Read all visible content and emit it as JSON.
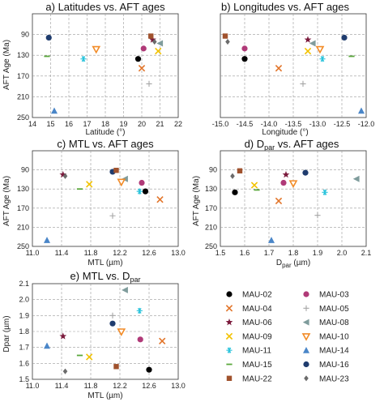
{
  "legend": {
    "entries": [
      {
        "name": "MAU-02",
        "marker": "circle",
        "color": "#000000"
      },
      {
        "name": "MAU-03",
        "marker": "circle",
        "color": "#b03a78"
      },
      {
        "name": "MAU-04",
        "marker": "x",
        "color": "#e2752a"
      },
      {
        "name": "MAU-05",
        "marker": "plus",
        "color": "#a6a6a6"
      },
      {
        "name": "MAU-06",
        "marker": "star",
        "color": "#7b1a3c"
      },
      {
        "name": "MAU-08",
        "marker": "tri-left",
        "color": "#7f9c9c"
      },
      {
        "name": "MAU-09",
        "marker": "x",
        "color": "#f2c200"
      },
      {
        "name": "MAU-10",
        "marker": "tri-down",
        "color": "#f28c28"
      },
      {
        "name": "MAU-11",
        "marker": "asterisk",
        "color": "#2cc4dc"
      },
      {
        "name": "MAU-14",
        "marker": "tri-up",
        "color": "#4a86c8"
      },
      {
        "name": "MAU-15",
        "marker": "dash",
        "color": "#5aa83c"
      },
      {
        "name": "MAU-16",
        "marker": "circle",
        "color": "#1f3c6e"
      },
      {
        "name": "MAU-22",
        "marker": "square",
        "color": "#a0522d"
      },
      {
        "name": "MAU-23",
        "marker": "diamond",
        "color": "#6b6b6b"
      }
    ]
  },
  "chart_data": [
    {
      "type": "scatter",
      "title": "a) Latitudes vs. AFT ages",
      "xlabel": "Latitude (°)",
      "ylabel": "AFT Age (Ma)",
      "xlim": [
        14,
        22
      ],
      "ylim": [
        250,
        50
      ],
      "xticks": [
        "14",
        "15",
        "16",
        "17",
        "18",
        "19",
        "20",
        "21",
        "22"
      ],
      "yticks": [
        "250",
        "210",
        "170",
        "130",
        "90"
      ],
      "grid": true,
      "points": [
        {
          "series": "MAU-02",
          "x": 19.8,
          "y": 137
        },
        {
          "series": "MAU-03",
          "x": 20.1,
          "y": 117
        },
        {
          "series": "MAU-04",
          "x": 20.0,
          "y": 155
        },
        {
          "series": "MAU-05",
          "x": 20.4,
          "y": 185
        },
        {
          "series": "MAU-06",
          "x": 20.6,
          "y": 100
        },
        {
          "series": "MAU-08",
          "x": 21.0,
          "y": 107
        },
        {
          "series": "MAU-09",
          "x": 20.9,
          "y": 122
        },
        {
          "series": "MAU-10",
          "x": 17.5,
          "y": 118
        },
        {
          "series": "MAU-11",
          "x": 16.8,
          "y": 137
        },
        {
          "series": "MAU-14",
          "x": 15.2,
          "y": 237
        },
        {
          "series": "MAU-15",
          "x": 14.8,
          "y": 132
        },
        {
          "series": "MAU-16",
          "x": 14.9,
          "y": 96
        },
        {
          "series": "MAU-22",
          "x": 20.5,
          "y": 93
        },
        {
          "series": "MAU-23",
          "x": 20.7,
          "y": 104
        }
      ]
    },
    {
      "type": "scatter",
      "title": "b) Longitudes vs. AFT ages",
      "xlabel": "Longitude (°)",
      "ylabel": "",
      "xlim": [
        -15,
        -12
      ],
      "ylim": [
        250,
        50
      ],
      "xticks": [
        "-15.0",
        "-14.5",
        "-14.0",
        "-13.5",
        "-13.0",
        "-12.5",
        "-12.0"
      ],
      "yticks": [],
      "grid": true,
      "points": [
        {
          "series": "MAU-02",
          "x": -14.5,
          "y": 137
        },
        {
          "series": "MAU-03",
          "x": -14.5,
          "y": 117
        },
        {
          "series": "MAU-04",
          "x": -13.8,
          "y": 155
        },
        {
          "series": "MAU-05",
          "x": -13.3,
          "y": 185
        },
        {
          "series": "MAU-06",
          "x": -13.2,
          "y": 100
        },
        {
          "series": "MAU-08",
          "x": -13.1,
          "y": 107
        },
        {
          "series": "MAU-09",
          "x": -13.2,
          "y": 122
        },
        {
          "series": "MAU-10",
          "x": -12.95,
          "y": 118
        },
        {
          "series": "MAU-11",
          "x": -12.9,
          "y": 137
        },
        {
          "series": "MAU-14",
          "x": -12.1,
          "y": 237
        },
        {
          "series": "MAU-15",
          "x": -12.3,
          "y": 132
        },
        {
          "series": "MAU-16",
          "x": -12.45,
          "y": 96
        },
        {
          "series": "MAU-22",
          "x": -14.9,
          "y": 93
        },
        {
          "series": "MAU-23",
          "x": -14.85,
          "y": 104
        }
      ]
    },
    {
      "type": "scatter",
      "title": "c) MTL vs. AFT ages",
      "xlabel": "MTL (µm)",
      "ylabel": "AFT Age (Ma)",
      "xlim": [
        11.0,
        13.0
      ],
      "ylim": [
        250,
        50
      ],
      "xticks": [
        "11.0",
        "11.4",
        "11.8",
        "12.2",
        "12.6",
        "13.0"
      ],
      "yticks": [
        "250",
        "210",
        "170",
        "130",
        "90"
      ],
      "grid": true,
      "points": [
        {
          "series": "MAU-02",
          "x": 12.55,
          "y": 135
        },
        {
          "series": "MAU-03",
          "x": 12.5,
          "y": 117
        },
        {
          "series": "MAU-04",
          "x": 12.75,
          "y": 152
        },
        {
          "series": "MAU-05",
          "x": 12.1,
          "y": 186
        },
        {
          "series": "MAU-06",
          "x": 11.42,
          "y": 100
        },
        {
          "series": "MAU-08",
          "x": 12.27,
          "y": 109
        },
        {
          "series": "MAU-09",
          "x": 11.78,
          "y": 120
        },
        {
          "series": "MAU-10",
          "x": 12.22,
          "y": 115
        },
        {
          "series": "MAU-11",
          "x": 12.47,
          "y": 135
        },
        {
          "series": "MAU-14",
          "x": 11.2,
          "y": 237
        },
        {
          "series": "MAU-15",
          "x": 11.65,
          "y": 130
        },
        {
          "series": "MAU-16",
          "x": 12.1,
          "y": 94
        },
        {
          "series": "MAU-22",
          "x": 12.15,
          "y": 91
        },
        {
          "series": "MAU-23",
          "x": 11.45,
          "y": 103
        }
      ]
    },
    {
      "type": "scatter",
      "title": "d) D_par vs. AFT ages",
      "xlabel": "D_par (µm)",
      "ylabel": "AFT Age (Ma)",
      "xlim": [
        1.5,
        2.1
      ],
      "ylim": [
        250,
        50
      ],
      "xticks": [
        "1.5",
        "1.6",
        "1.7",
        "1.8",
        "1.9",
        "2.0",
        "2.1"
      ],
      "yticks": [
        "250",
        "210",
        "170",
        "130",
        "90"
      ],
      "grid": true,
      "points": [
        {
          "series": "MAU-02",
          "x": 1.56,
          "y": 137
        },
        {
          "series": "MAU-03",
          "x": 1.76,
          "y": 117
        },
        {
          "series": "MAU-04",
          "x": 1.74,
          "y": 155
        },
        {
          "series": "MAU-05",
          "x": 1.9,
          "y": 185
        },
        {
          "series": "MAU-06",
          "x": 1.77,
          "y": 100
        },
        {
          "series": "MAU-08",
          "x": 2.06,
          "y": 109
        },
        {
          "series": "MAU-09",
          "x": 1.64,
          "y": 122
        },
        {
          "series": "MAU-10",
          "x": 1.8,
          "y": 118
        },
        {
          "series": "MAU-11",
          "x": 1.93,
          "y": 137
        },
        {
          "series": "MAU-14",
          "x": 1.71,
          "y": 237
        },
        {
          "series": "MAU-15",
          "x": 1.65,
          "y": 132
        },
        {
          "series": "MAU-16",
          "x": 1.85,
          "y": 96
        },
        {
          "series": "MAU-22",
          "x": 1.58,
          "y": 92
        },
        {
          "series": "MAU-23",
          "x": 1.55,
          "y": 103
        }
      ]
    },
    {
      "type": "scatter",
      "title": "e) MTL vs. D_par",
      "xlabel": "MTL (µm)",
      "ylabel": "Dpar (µm)",
      "xlim": [
        11.0,
        13.0
      ],
      "ylim": [
        1.5,
        2.1
      ],
      "xticks": [
        "11.0",
        "11.4",
        "11.8",
        "12.2",
        "12.6",
        "13.0"
      ],
      "yticks": [
        "1.5",
        "1.6",
        "1.7",
        "1.8",
        "1.9",
        "2.0",
        "2.1"
      ],
      "grid": true,
      "points": [
        {
          "series": "MAU-02",
          "x": 12.6,
          "y": 1.56
        },
        {
          "series": "MAU-03",
          "x": 12.48,
          "y": 1.75
        },
        {
          "series": "MAU-04",
          "x": 12.78,
          "y": 1.74
        },
        {
          "series": "MAU-05",
          "x": 12.1,
          "y": 1.9
        },
        {
          "series": "MAU-06",
          "x": 11.42,
          "y": 1.77
        },
        {
          "series": "MAU-08",
          "x": 12.27,
          "y": 2.06
        },
        {
          "series": "MAU-09",
          "x": 11.78,
          "y": 1.64
        },
        {
          "series": "MAU-10",
          "x": 12.22,
          "y": 1.8
        },
        {
          "series": "MAU-11",
          "x": 12.47,
          "y": 1.93
        },
        {
          "series": "MAU-14",
          "x": 11.2,
          "y": 1.71
        },
        {
          "series": "MAU-15",
          "x": 11.65,
          "y": 1.65
        },
        {
          "series": "MAU-16",
          "x": 12.1,
          "y": 1.85
        },
        {
          "series": "MAU-22",
          "x": 12.15,
          "y": 1.58
        },
        {
          "series": "MAU-23",
          "x": 11.45,
          "y": 1.55
        }
      ]
    }
  ]
}
